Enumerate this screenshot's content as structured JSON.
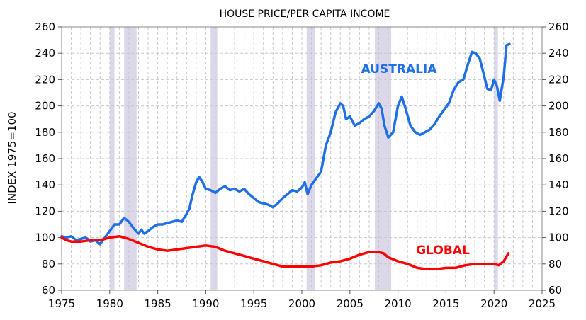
{
  "chart_data": {
    "type": "line",
    "title": "HOUSE PRICE/PER CAPITA INCOME",
    "ylabel": "INDEX 1975=100",
    "xlim": [
      1975,
      2025
    ],
    "ylim": [
      60,
      260
    ],
    "xticks": [
      1975,
      1980,
      1985,
      1990,
      1995,
      2000,
      2005,
      2010,
      2015,
      2020,
      2025
    ],
    "yticks": [
      60,
      80,
      100,
      120,
      140,
      160,
      180,
      200,
      220,
      240,
      260
    ],
    "grid": true,
    "recession_bands": [
      [
        1980.0,
        1980.5
      ],
      [
        1981.5,
        1982.8
      ],
      [
        1990.5,
        1991.2
      ],
      [
        2000.5,
        2001.4
      ],
      [
        2007.6,
        2009.3
      ],
      [
        2020.0,
        2020.4
      ]
    ],
    "colors": {
      "australia": "#1f6fe5",
      "global": "#ff0000",
      "band": "#dcd8ea",
      "grid": "#c8c8d2"
    },
    "series": [
      {
        "name": "AUSTRALIA",
        "x": [
          1975,
          1975.5,
          1976,
          1976.5,
          1977,
          1977.5,
          1978,
          1978.5,
          1979,
          1979.5,
          1980,
          1980.5,
          1981,
          1981.5,
          1982,
          1982.5,
          1983,
          1983.3,
          1983.6,
          1984,
          1984.5,
          1985,
          1985.5,
          1986,
          1986.5,
          1987,
          1987.5,
          1988,
          1988.3,
          1988.6,
          1989,
          1989.3,
          1989.6,
          1990,
          1990.5,
          1991,
          1991.5,
          1992,
          1992.5,
          1993,
          1993.5,
          1994,
          1994.5,
          1995,
          1995.5,
          1996,
          1996.5,
          1997,
          1997.5,
          1998,
          1998.5,
          1999,
          1999.5,
          2000,
          2000.3,
          2000.6,
          2001,
          2001.5,
          2002,
          2002.5,
          2003,
          2003.5,
          2004,
          2004.3,
          2004.6,
          2005,
          2005.5,
          2006,
          2006.5,
          2007,
          2007.5,
          2008,
          2008.3,
          2008.6,
          2009,
          2009.5,
          2010,
          2010.4,
          2010.8,
          2011.3,
          2011.8,
          2012.3,
          2012.8,
          2013.3,
          2013.8,
          2014.3,
          2014.8,
          2015.3,
          2015.8,
          2016.3,
          2016.8,
          2017.3,
          2017.7,
          2018.1,
          2018.5,
          2018.9,
          2019.3,
          2019.7,
          2020.0,
          2020.3,
          2020.6,
          2021.0,
          2021.3,
          2021.6
        ],
        "values": [
          101,
          100,
          101,
          98,
          99,
          100,
          97,
          98,
          95,
          100,
          105,
          110,
          110,
          115,
          112,
          107,
          103,
          106,
          103,
          105,
          108,
          110,
          110,
          111,
          112,
          113,
          112,
          118,
          122,
          132,
          142,
          146,
          143,
          137,
          136,
          134,
          137,
          139,
          136,
          137,
          135,
          137,
          133,
          130,
          127,
          126,
          125,
          123,
          126,
          130,
          133,
          136,
          135,
          138,
          142,
          133,
          140,
          145,
          150,
          170,
          180,
          195,
          202,
          200,
          190,
          192,
          185,
          187,
          190,
          192,
          196,
          202,
          198,
          185,
          176,
          180,
          200,
          207,
          198,
          185,
          180,
          178,
          180,
          182,
          186,
          192,
          197,
          202,
          212,
          218,
          220,
          232,
          241,
          240,
          236,
          225,
          213,
          212,
          220,
          215,
          204,
          222,
          246,
          247
        ]
      },
      {
        "name": "GLOBAL",
        "x": [
          1975,
          1975.5,
          1976,
          1977,
          1978,
          1979,
          1980,
          1981,
          1982,
          1983,
          1984,
          1985,
          1986,
          1987,
          1988,
          1989,
          1990,
          1991,
          1992,
          1993,
          1994,
          1995,
          1996,
          1997,
          1998,
          1999,
          2000,
          2001,
          2002,
          2003,
          2004,
          2005,
          2006,
          2007,
          2008,
          2008.5,
          2009,
          2010,
          2011,
          2012,
          2013,
          2014,
          2015,
          2016,
          2017,
          2018,
          2019,
          2020,
          2020.5,
          2021,
          2021.5
        ],
        "values": [
          100,
          98,
          97,
          97,
          98,
          98,
          100,
          101,
          99,
          96,
          93,
          91,
          90,
          91,
          92,
          93,
          94,
          93,
          90,
          88,
          86,
          84,
          82,
          80,
          78,
          78,
          78,
          78,
          79,
          81,
          82,
          84,
          87,
          89,
          89,
          88,
          85,
          82,
          80,
          77,
          76,
          76,
          77,
          77,
          79,
          80,
          80,
          80,
          79,
          82,
          88
        ]
      }
    ]
  }
}
